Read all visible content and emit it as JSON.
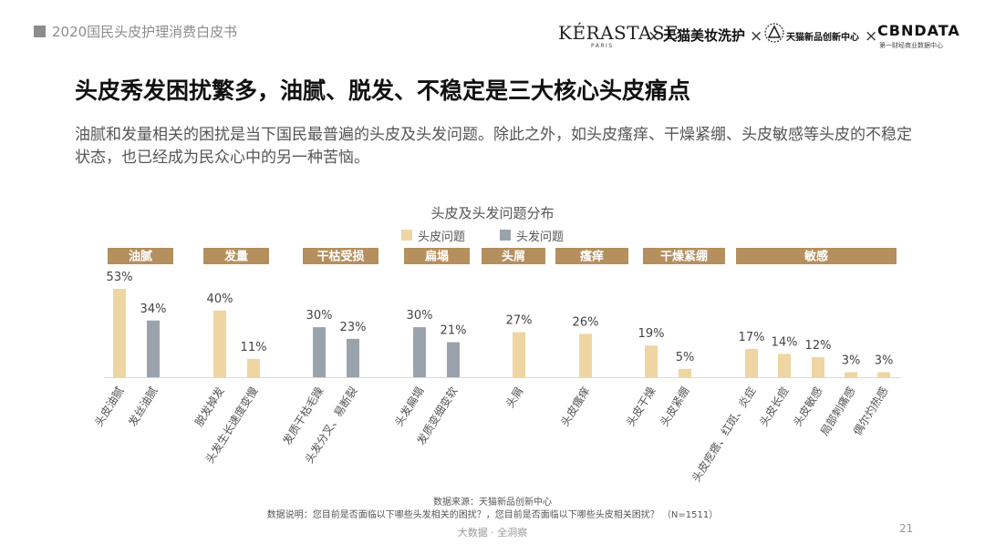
{
  "header": {
    "report_title": "2020国民头皮护理消费白皮书"
  },
  "logos": {
    "kerastase": "KÉRASTASE",
    "kerastase_sub": "PARIS",
    "tmall_beauty": "天猫美妆洗护",
    "tmall_innovation": "天猫新品创新中心",
    "cbndata": "CBNDATA",
    "cbndata_sub": "第一财经商业数据中心",
    "separator": "×"
  },
  "slide": {
    "title": "头皮秀发困扰繁多，油腻、脱发、不稳定是三大核心头皮痛点",
    "description": "油腻和发量相关的困扰是当下国民最普遍的头皮及头发问题。除此之外，如头皮瘙痒、干燥紧绷、头皮敏感等头皮的不稳定状态，也已经成为民众心中的另一种苦恼。"
  },
  "colors": {
    "scalp": "#efd5a1",
    "hair": "#9aa3ab",
    "group_bg": "#b58f5e",
    "group_text": "#ffffff"
  },
  "chart_data": {
    "type": "bar",
    "title": "头皮及头发问题分布",
    "unit": "%",
    "legend": [
      {
        "name": "头皮问题",
        "key": "scalp"
      },
      {
        "name": "头发问题",
        "key": "hair"
      }
    ],
    "groups": [
      {
        "name": "油腻",
        "bars": [
          {
            "label": "头皮油腻",
            "series": "scalp",
            "value": 53
          },
          {
            "label": "发丝油腻",
            "series": "hair",
            "value": 34
          }
        ]
      },
      {
        "name": "发量",
        "bars": [
          {
            "label": "脱发掉发",
            "series": "scalp",
            "value": 40
          },
          {
            "label": "头发生长速度变慢",
            "series": "scalp",
            "value": 11
          }
        ]
      },
      {
        "name": "干枯受损",
        "bars": [
          {
            "label": "发质干枯毛躁",
            "series": "hair",
            "value": 30
          },
          {
            "label": "头发分叉、易断裂",
            "series": "hair",
            "value": 23
          }
        ]
      },
      {
        "name": "扁塌",
        "bars": [
          {
            "label": "头发扁塌",
            "series": "hair",
            "value": 30
          },
          {
            "label": "发质变细变软",
            "series": "hair",
            "value": 21
          }
        ]
      },
      {
        "name": "头屑",
        "bars": [
          {
            "label": "头屑",
            "series": "scalp",
            "value": 27
          }
        ]
      },
      {
        "name": "瘙痒",
        "bars": [
          {
            "label": "头皮瘙痒",
            "series": "scalp",
            "value": 26
          }
        ]
      },
      {
        "name": "干燥紧绷",
        "bars": [
          {
            "label": "头皮干燥",
            "series": "scalp",
            "value": 19
          },
          {
            "label": "头皮紧绷",
            "series": "scalp",
            "value": 5
          }
        ]
      },
      {
        "name": "敏感",
        "bars": [
          {
            "label": "头皮疙瘩、红斑、炎症",
            "series": "scalp",
            "value": 17
          },
          {
            "label": "头皮长痘",
            "series": "scalp",
            "value": 14
          },
          {
            "label": "头皮敏感",
            "series": "scalp",
            "value": 12
          },
          {
            "label": "局部刺痛感",
            "series": "scalp",
            "value": 3
          },
          {
            "label": "偶尔灼热感",
            "series": "scalp",
            "value": 3
          }
        ]
      }
    ]
  },
  "footer": {
    "source": "数据来源：天猫新品创新中心",
    "note": "数据说明：您目前是否面临以下哪些头发相关的困扰？，您目前是否面临以下哪些头皮相关困扰？   （N=1511）",
    "brand": "大数据 · 全洞察",
    "page_number": "21"
  }
}
